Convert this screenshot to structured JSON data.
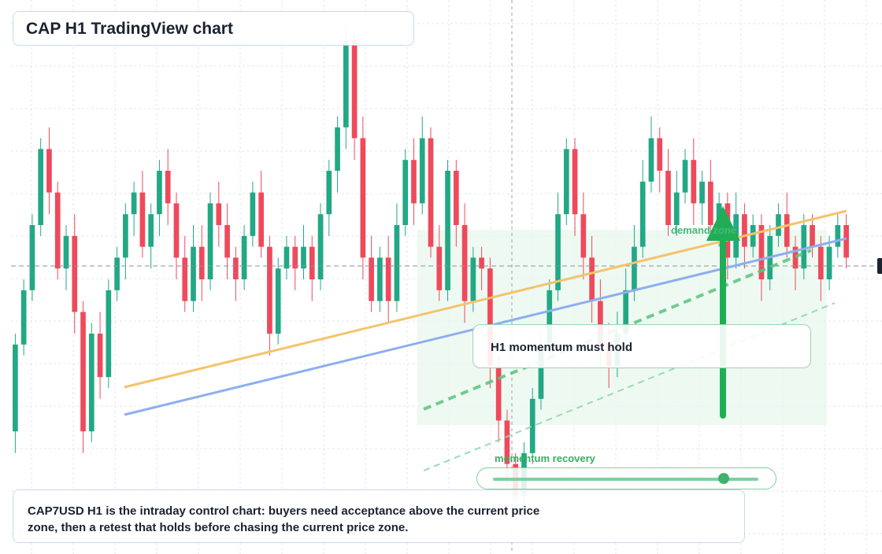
{
  "header": {
    "title": "CAP H1 TradingView chart"
  },
  "note": {
    "text": "CAP7USD H1 is the intraday control chart: buyers need acceptance above the current price zone, then a retest that holds before chasing the current price zone."
  },
  "callout": {
    "text": "H1 momentum must hold"
  },
  "zone": {
    "label": "demand zone"
  },
  "momentum": {
    "label": "momentum recovery",
    "level": 0.87
  },
  "colors": {
    "up": "#22a884",
    "down": "#ee4a5b",
    "zone": "#d9f2e1",
    "orange_line": "#f5c36b",
    "blue_line": "#8eaef0",
    "green_dash": "#5cc27f",
    "arrow": "#1fae55",
    "grid": "#e3e7ee"
  },
  "icons": {
    "up_arrow": "arrow-up-icon"
  },
  "chart_data": {
    "type": "candlestick",
    "symbol": "CAP7USD",
    "timeframe": "H1",
    "ylim": [
      0,
      100
    ],
    "current_price": 55,
    "candles": [
      [
        22,
        38,
        18,
        40
      ],
      [
        38,
        48,
        36,
        50
      ],
      [
        48,
        60,
        46,
        62
      ],
      [
        60,
        74,
        58,
        76
      ],
      [
        74,
        66,
        62,
        78
      ],
      [
        66,
        52,
        50,
        68
      ],
      [
        52,
        58,
        48,
        60
      ],
      [
        58,
        44,
        40,
        62
      ],
      [
        44,
        22,
        18,
        46
      ],
      [
        22,
        40,
        20,
        42
      ],
      [
        40,
        32,
        28,
        44
      ],
      [
        32,
        48,
        30,
        50
      ],
      [
        48,
        54,
        46,
        56
      ],
      [
        54,
        62,
        50,
        64
      ],
      [
        62,
        66,
        58,
        68
      ],
      [
        66,
        56,
        54,
        70
      ],
      [
        56,
        62,
        52,
        64
      ],
      [
        62,
        70,
        58,
        72
      ],
      [
        70,
        64,
        60,
        74
      ],
      [
        64,
        54,
        50,
        66
      ],
      [
        54,
        46,
        44,
        58
      ],
      [
        46,
        56,
        44,
        60
      ],
      [
        56,
        50,
        46,
        60
      ],
      [
        50,
        64,
        48,
        66
      ],
      [
        64,
        60,
        56,
        68
      ],
      [
        60,
        54,
        50,
        64
      ],
      [
        54,
        50,
        46,
        56
      ],
      [
        50,
        58,
        48,
        60
      ],
      [
        58,
        66,
        56,
        68
      ],
      [
        66,
        56,
        54,
        70
      ],
      [
        56,
        40,
        36,
        58
      ],
      [
        40,
        52,
        38,
        54
      ],
      [
        52,
        56,
        50,
        58
      ],
      [
        56,
        52,
        48,
        58
      ],
      [
        52,
        56,
        50,
        60
      ],
      [
        56,
        50,
        46,
        58
      ],
      [
        50,
        62,
        48,
        64
      ],
      [
        62,
        70,
        58,
        72
      ],
      [
        70,
        78,
        66,
        80
      ],
      [
        78,
        94,
        74,
        96
      ],
      [
        94,
        76,
        72,
        96
      ],
      [
        76,
        54,
        50,
        80
      ],
      [
        54,
        46,
        44,
        58
      ],
      [
        46,
        54,
        44,
        56
      ],
      [
        54,
        46,
        42,
        58
      ],
      [
        46,
        60,
        44,
        64
      ],
      [
        60,
        72,
        58,
        74
      ],
      [
        72,
        64,
        60,
        76
      ],
      [
        64,
        76,
        62,
        80
      ],
      [
        76,
        56,
        54,
        78
      ],
      [
        56,
        48,
        46,
        60
      ],
      [
        48,
        70,
        46,
        72
      ],
      [
        70,
        60,
        56,
        72
      ],
      [
        60,
        46,
        42,
        64
      ],
      [
        46,
        54,
        44,
        56
      ],
      [
        54,
        52,
        48,
        56
      ],
      [
        52,
        34,
        30,
        54
      ],
      [
        34,
        24,
        20,
        36
      ],
      [
        24,
        16,
        12,
        26
      ],
      [
        16,
        10,
        6,
        18
      ],
      [
        10,
        18,
        8,
        20
      ],
      [
        18,
        28,
        16,
        30
      ],
      [
        28,
        38,
        26,
        40
      ],
      [
        38,
        48,
        36,
        50
      ],
      [
        48,
        62,
        46,
        66
      ],
      [
        62,
        74,
        60,
        76
      ],
      [
        74,
        62,
        58,
        76
      ],
      [
        62,
        54,
        50,
        66
      ],
      [
        54,
        46,
        42,
        58
      ],
      [
        46,
        38,
        34,
        50
      ],
      [
        38,
        34,
        30,
        42
      ],
      [
        34,
        40,
        32,
        44
      ],
      [
        40,
        48,
        38,
        52
      ],
      [
        48,
        56,
        46,
        60
      ],
      [
        56,
        68,
        54,
        72
      ],
      [
        68,
        76,
        66,
        80
      ],
      [
        76,
        70,
        66,
        78
      ],
      [
        70,
        60,
        58,
        74
      ],
      [
        60,
        66,
        58,
        70
      ],
      [
        66,
        72,
        64,
        74
      ],
      [
        72,
        64,
        60,
        76
      ],
      [
        64,
        68,
        60,
        70
      ],
      [
        68,
        60,
        58,
        72
      ],
      [
        60,
        64,
        56,
        66
      ],
      [
        64,
        54,
        50,
        66
      ],
      [
        54,
        62,
        52,
        66
      ],
      [
        62,
        56,
        52,
        64
      ],
      [
        56,
        60,
        54,
        62
      ],
      [
        60,
        50,
        46,
        62
      ],
      [
        50,
        58,
        48,
        60
      ],
      [
        58,
        62,
        56,
        64
      ],
      [
        62,
        56,
        54,
        66
      ],
      [
        56,
        52,
        48,
        58
      ],
      [
        52,
        60,
        50,
        62
      ],
      [
        60,
        56,
        54,
        62
      ],
      [
        56,
        50,
        46,
        58
      ],
      [
        50,
        56,
        48,
        58
      ],
      [
        56,
        60,
        54,
        62
      ],
      [
        60,
        54,
        52,
        62
      ]
    ]
  }
}
